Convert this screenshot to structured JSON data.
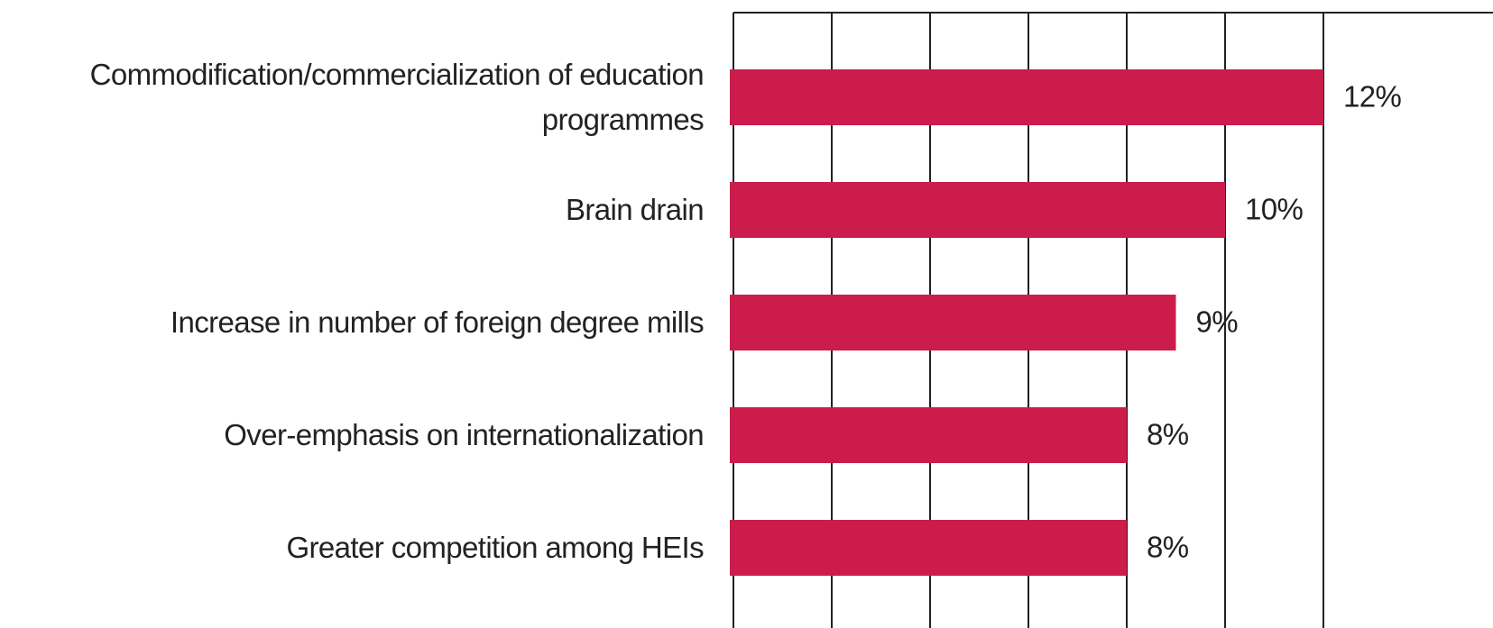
{
  "chart_data": {
    "type": "bar",
    "orientation": "horizontal",
    "categories": [
      "Commodification/commercialization of education programmes",
      "Brain drain",
      "Increase in number of foreign degree mills",
      "Over-emphasis on internationalization",
      "Greater competition among HEIs"
    ],
    "values": [
      12,
      10,
      9,
      8,
      8
    ],
    "value_labels": [
      "12%",
      "10%",
      "9%",
      "8%",
      "8%"
    ],
    "color": "#cc1c4c",
    "xlim": [
      0,
      12
    ],
    "xticks": [
      0,
      2,
      4,
      6,
      8,
      10,
      12
    ],
    "grid": true
  }
}
